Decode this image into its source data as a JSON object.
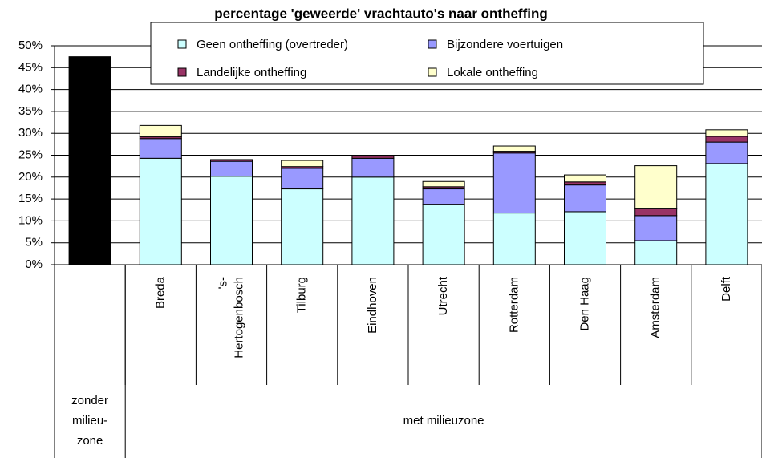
{
  "chart_data": {
    "type": "stacked_bar",
    "title": "percentage 'geweerde' vrachtauto's naar ontheffing",
    "categories": [
      null,
      "Breda",
      "'s-Hertogenbosch",
      "Tilburg",
      "Eindhoven",
      "Utrecht",
      "Rotterdam",
      "Den Haag",
      "Amsterdam",
      "Delft"
    ],
    "groups": [
      {
        "label": "zonder milieu-zone",
        "count": 1
      },
      {
        "label": "met milieuzone",
        "count": 9
      }
    ],
    "series": [
      {
        "name": "Geen ontheffing (overtreder)",
        "color": "#ccffff",
        "values": [
          47.5,
          24.3,
          20.2,
          17.3,
          20.0,
          13.8,
          11.8,
          12.1,
          5.5,
          23.1
        ],
        "point_colors": [
          "#000000",
          null,
          null,
          null,
          null,
          null,
          null,
          null,
          null,
          null
        ]
      },
      {
        "name": "Bijzondere voertuigen",
        "color": "#9999ff",
        "values": [
          null,
          4.5,
          3.4,
          4.7,
          4.3,
          3.5,
          13.7,
          6.1,
          5.7,
          4.9
        ]
      },
      {
        "name": "Landelijke ontheffing",
        "color": "#993366",
        "values": [
          null,
          0.4,
          0.4,
          0.4,
          0.5,
          0.5,
          0.4,
          0.7,
          1.7,
          1.3
        ]
      },
      {
        "name": "Lokale ontheffing",
        "color": "#ffffcc",
        "values": [
          null,
          2.6,
          0,
          1.4,
          0,
          1.2,
          1.2,
          1.6,
          9.7,
          1.5
        ]
      }
    ],
    "ylim": [
      0,
      50
    ],
    "yticks": [
      {
        "value": 0,
        "label": "0%"
      },
      {
        "value": 5,
        "label": "5%"
      },
      {
        "value": 10,
        "label": "10%"
      },
      {
        "value": 15,
        "label": "15%"
      },
      {
        "value": 20,
        "label": "20%"
      },
      {
        "value": 25,
        "label": "25%"
      },
      {
        "value": 30,
        "label": "30%"
      },
      {
        "value": 35,
        "label": "35%"
      },
      {
        "value": 40,
        "label": "40%"
      },
      {
        "value": 45,
        "label": "45%"
      },
      {
        "value": 50,
        "label": "50%"
      }
    ],
    "grid": true,
    "legend": "top"
  }
}
